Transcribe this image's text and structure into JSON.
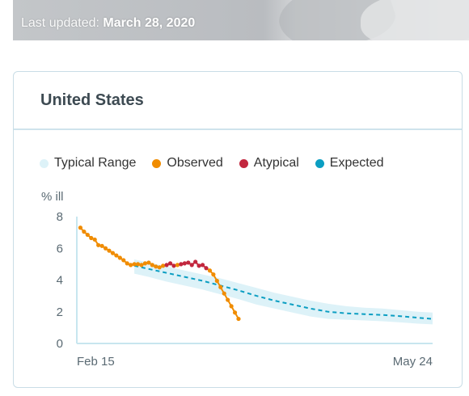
{
  "banner": {
    "last_updated_label": "Last updated:",
    "last_updated_date": "March 28, 2020"
  },
  "card": {
    "title": "United States"
  },
  "colors": {
    "typical_range": "#ddf2f8",
    "observed": "#f08c00",
    "atypical": "#c2273e",
    "expected": "#0b9ec2",
    "axis": "#c8e6ef"
  },
  "chart_data": {
    "type": "line",
    "ylabel": "% ill",
    "ylim": [
      0,
      8
    ],
    "yticks": [
      0,
      2,
      4,
      6,
      8
    ],
    "xlim": [
      0,
      99
    ],
    "xtick_labels": [
      {
        "day": 0,
        "label": "Feb 15"
      },
      {
        "day": 99,
        "label": "May 24"
      }
    ],
    "legend": {
      "position": "top-left",
      "entries": [
        {
          "key": "typical_range",
          "label": "Typical Range"
        },
        {
          "key": "observed",
          "label": "Observed"
        },
        {
          "key": "atypical",
          "label": "Atypical"
        },
        {
          "key": "expected",
          "label": "Expected"
        }
      ]
    },
    "observed": [
      [
        1,
        7.3
      ],
      [
        2,
        7.05
      ],
      [
        3,
        6.85
      ],
      [
        4,
        6.65
      ],
      [
        5,
        6.55
      ],
      [
        6,
        6.2
      ],
      [
        7,
        6.15
      ],
      [
        8,
        6.0
      ],
      [
        9,
        5.85
      ],
      [
        10,
        5.7
      ],
      [
        11,
        5.55
      ],
      [
        12,
        5.4
      ],
      [
        13,
        5.25
      ],
      [
        14,
        5.05
      ],
      [
        15,
        4.95
      ],
      [
        16,
        5.0
      ],
      [
        17,
        5.0
      ],
      [
        18,
        4.95
      ],
      [
        19,
        5.05
      ],
      [
        20,
        5.1
      ],
      [
        21,
        4.95
      ],
      [
        22,
        4.85
      ],
      [
        23,
        4.8
      ],
      [
        24,
        4.9
      ],
      [
        28,
        4.95
      ],
      [
        37,
        4.6
      ],
      [
        38,
        4.35
      ],
      [
        39,
        3.95
      ],
      [
        40,
        3.55
      ],
      [
        41,
        3.15
      ],
      [
        42,
        2.75
      ],
      [
        43,
        2.35
      ],
      [
        44,
        1.95
      ],
      [
        45,
        1.55
      ]
    ],
    "atypical": [
      [
        25,
        4.95
      ],
      [
        26,
        5.05
      ],
      [
        27,
        4.9
      ],
      [
        29,
        5.0
      ],
      [
        30,
        5.05
      ],
      [
        31,
        5.1
      ],
      [
        32,
        4.95
      ],
      [
        33,
        5.15
      ],
      [
        34,
        4.9
      ],
      [
        35,
        4.95
      ],
      [
        36,
        4.75
      ]
    ],
    "expected": [
      [
        16,
        4.9
      ],
      [
        20,
        4.7
      ],
      [
        25,
        4.45
      ],
      [
        30,
        4.2
      ],
      [
        35,
        3.95
      ],
      [
        40,
        3.65
      ],
      [
        45,
        3.35
      ],
      [
        50,
        3.0
      ],
      [
        55,
        2.7
      ],
      [
        60,
        2.45
      ],
      [
        65,
        2.2
      ],
      [
        70,
        2.0
      ],
      [
        75,
        1.9
      ],
      [
        80,
        1.85
      ],
      [
        85,
        1.8
      ],
      [
        90,
        1.72
      ],
      [
        95,
        1.62
      ],
      [
        99,
        1.55
      ]
    ],
    "typical_range": {
      "lower": [
        [
          16,
          4.4
        ],
        [
          20,
          4.2
        ],
        [
          25,
          3.9
        ],
        [
          30,
          3.65
        ],
        [
          35,
          3.4
        ],
        [
          40,
          3.1
        ],
        [
          45,
          2.8
        ],
        [
          50,
          2.45
        ],
        [
          55,
          2.2
        ],
        [
          60,
          1.95
        ],
        [
          65,
          1.7
        ],
        [
          70,
          1.55
        ],
        [
          75,
          1.5
        ],
        [
          80,
          1.45
        ],
        [
          85,
          1.4
        ],
        [
          90,
          1.33
        ],
        [
          95,
          1.25
        ],
        [
          99,
          1.2
        ]
      ],
      "upper": [
        [
          16,
          5.3
        ],
        [
          20,
          5.1
        ],
        [
          25,
          4.85
        ],
        [
          30,
          4.6
        ],
        [
          35,
          4.35
        ],
        [
          40,
          4.1
        ],
        [
          45,
          3.8
        ],
        [
          50,
          3.5
        ],
        [
          55,
          3.2
        ],
        [
          60,
          2.95
        ],
        [
          65,
          2.7
        ],
        [
          70,
          2.5
        ],
        [
          75,
          2.35
        ],
        [
          80,
          2.25
        ],
        [
          85,
          2.2
        ],
        [
          90,
          2.1
        ],
        [
          95,
          2.0
        ],
        [
          99,
          1.95
        ]
      ]
    }
  }
}
